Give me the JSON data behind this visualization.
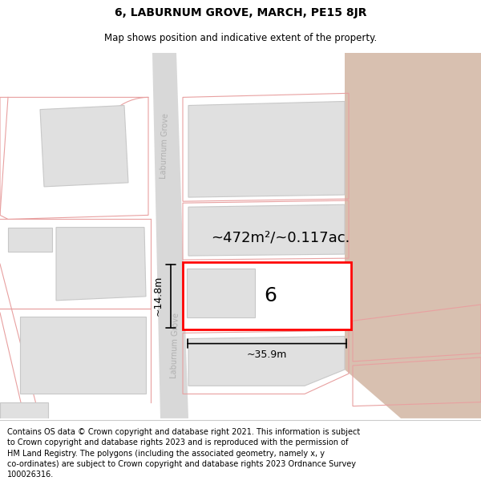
{
  "title": "6, LABURNUM GROVE, MARCH, PE15 8JR",
  "subtitle": "Map shows position and indicative extent of the property.",
  "title_fontsize": 10,
  "subtitle_fontsize": 8.5,
  "footer_text": "Contains OS data © Crown copyright and database right 2021. This information is subject\nto Crown copyright and database rights 2023 and is reproduced with the permission of\nHM Land Registry. The polygons (including the associated geometry, namely x, y\nco-ordinates) are subject to Crown copyright and database rights 2023 Ordnance Survey\n100026316.",
  "area_label": "~472m²/~0.117ac.",
  "number_label": "6",
  "dim_width": "~35.9m",
  "dim_height": "~14.8m",
  "road_color": "#d0d0d0",
  "road_label_color": "#aaaaaa",
  "plot_edge_color": "#e8a0a0",
  "building_fill": "#e0e0e0",
  "building_edge": "#c8c8c8",
  "tan_fill": "#d8c0b0",
  "highlight_edge": "#ff0000",
  "highlight_fill": "#ffffff",
  "dim_line_color": "#000000"
}
